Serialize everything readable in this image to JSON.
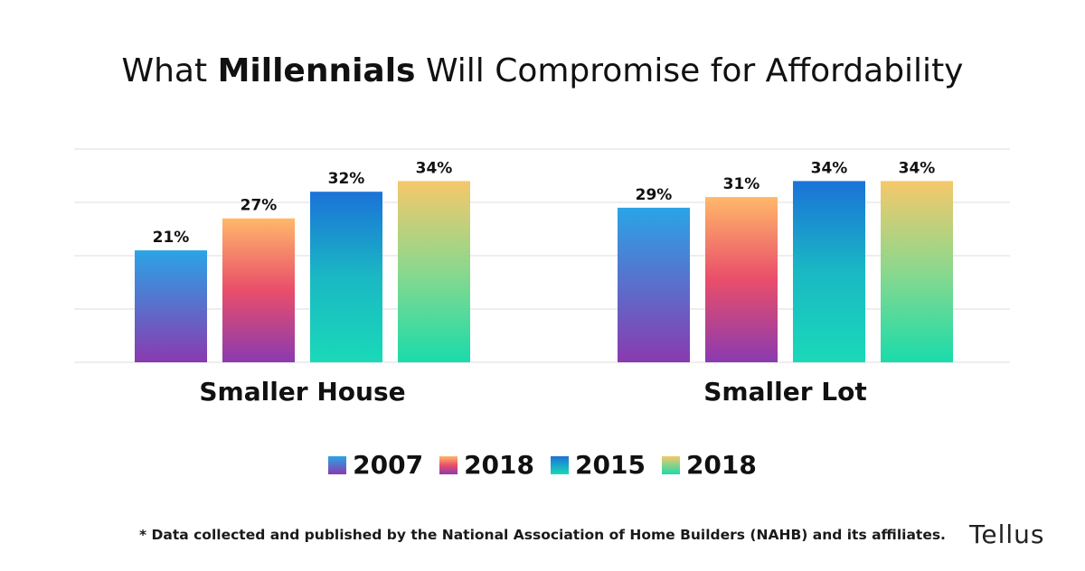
{
  "title": {
    "prefix": "What",
    "bold": "Millennials",
    "suffix": "Will Compromise for Affordability"
  },
  "chart_data": {
    "type": "bar",
    "categories": [
      "Smaller House",
      "Smaller Lot"
    ],
    "series": [
      {
        "name": "2007",
        "values": [
          21,
          29
        ],
        "labels": [
          "21%",
          "29%"
        ],
        "gradient": [
          "#2aa4e6",
          "#8a3ab0"
        ]
      },
      {
        "name": "2018",
        "values": [
          27,
          31
        ],
        "labels": [
          "27%",
          "31%"
        ],
        "gradient": [
          "#ffb86a",
          "#e94e6a",
          "#8a3ab0"
        ]
      },
      {
        "name": "2015",
        "values": [
          32,
          34
        ],
        "labels": [
          "32%",
          "34%"
        ],
        "gradient": [
          "#1b72d8",
          "#1ab8c4",
          "#1ad9b8"
        ]
      },
      {
        "name": "2018",
        "values": [
          34,
          34
        ],
        "labels": [
          "34%",
          "34%"
        ],
        "gradient": [
          "#f5c86a",
          "#8ad88e",
          "#1adbaa"
        ]
      }
    ],
    "ylim": [
      0,
      40
    ],
    "grid": true,
    "legend_position": "bottom"
  },
  "legend": [
    {
      "label": "2007",
      "gradient": [
        "#2aa4e6",
        "#8a3ab0"
      ]
    },
    {
      "label": "2018",
      "gradient": [
        "#ffb86a",
        "#e94e6a",
        "#8a3ab0"
      ]
    },
    {
      "label": "2015",
      "gradient": [
        "#1b72d8",
        "#1ad9b8"
      ]
    },
    {
      "label": "2018",
      "gradient": [
        "#f5c86a",
        "#1adbaa"
      ]
    }
  ],
  "footnote": "* Data collected and published by the National Association of Home Builders (NAHB) and its affiliates.",
  "logo": "Tellus"
}
